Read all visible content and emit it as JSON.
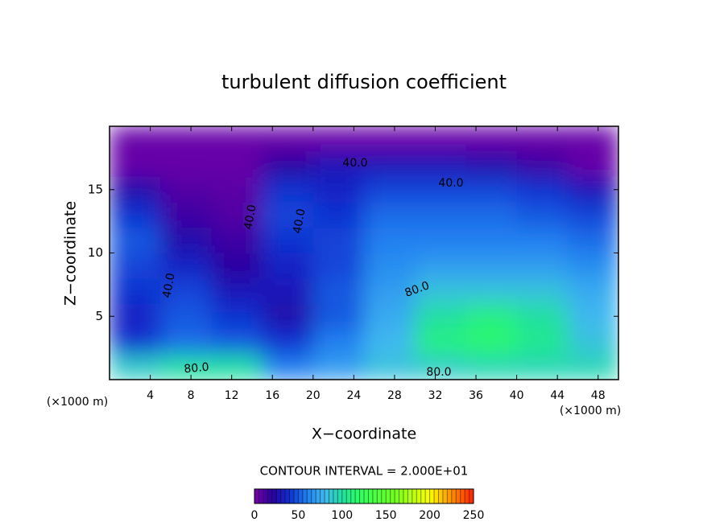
{
  "chart_data": {
    "type": "contour",
    "title": "turbulent diffusion coefficient",
    "xlabel": "X−coordinate",
    "ylabel": "Z−coordinate",
    "x_unit": "(×1000 m)",
    "y_unit": "(×1000 m)",
    "xlim": [
      0,
      50
    ],
    "ylim": [
      0,
      20
    ],
    "xticks": [
      4,
      8,
      12,
      16,
      20,
      24,
      28,
      32,
      36,
      40,
      44,
      48
    ],
    "yticks": [
      5,
      10,
      15
    ],
    "x": [
      2.5,
      7.5,
      12.5,
      17.5,
      22.5,
      27.5,
      32.5,
      37.5,
      42.5,
      47.5
    ],
    "y": [
      1,
      3,
      5,
      7,
      9,
      11,
      13,
      15,
      17,
      19
    ],
    "z": [
      [
        90,
        100,
        100,
        60,
        70,
        85,
        90,
        95,
        95,
        95
      ],
      [
        40,
        55,
        50,
        40,
        60,
        80,
        110,
        115,
        105,
        85
      ],
      [
        35,
        50,
        40,
        25,
        50,
        75,
        100,
        110,
        100,
        80
      ],
      [
        40,
        45,
        30,
        30,
        50,
        70,
        85,
        85,
        85,
        75
      ],
      [
        45,
        35,
        20,
        35,
        45,
        65,
        70,
        70,
        70,
        65
      ],
      [
        50,
        25,
        15,
        40,
        45,
        60,
        60,
        60,
        60,
        55
      ],
      [
        40,
        15,
        10,
        45,
        40,
        55,
        55,
        55,
        50,
        45
      ],
      [
        25,
        10,
        8,
        40,
        35,
        45,
        45,
        45,
        40,
        30
      ],
      [
        5,
        5,
        5,
        20,
        30,
        30,
        30,
        25,
        15,
        5
      ],
      [
        5,
        5,
        5,
        5,
        5,
        5,
        5,
        5,
        5,
        5
      ]
    ],
    "contour_labels": [
      "40.0",
      "40.0",
      "40.0",
      "40.0",
      "40.0",
      "80.0",
      "80.0",
      "80.0"
    ],
    "contour_interval": "CONTOUR INTERVAL = 2.000E+01",
    "clim": [
      0,
      250
    ],
    "colorbar_ticks": [
      0,
      50,
      100,
      150,
      200,
      250
    ],
    "colormap": [
      [
        0,
        "#7a00aa"
      ],
      [
        20,
        "#2a00a0"
      ],
      [
        40,
        "#1030d0"
      ],
      [
        60,
        "#2080f0"
      ],
      [
        80,
        "#40b8f0"
      ],
      [
        100,
        "#20e0a0"
      ],
      [
        120,
        "#30ff60"
      ],
      [
        160,
        "#70ff20"
      ],
      [
        200,
        "#ffff00"
      ],
      [
        250,
        "#ff2000"
      ]
    ]
  }
}
